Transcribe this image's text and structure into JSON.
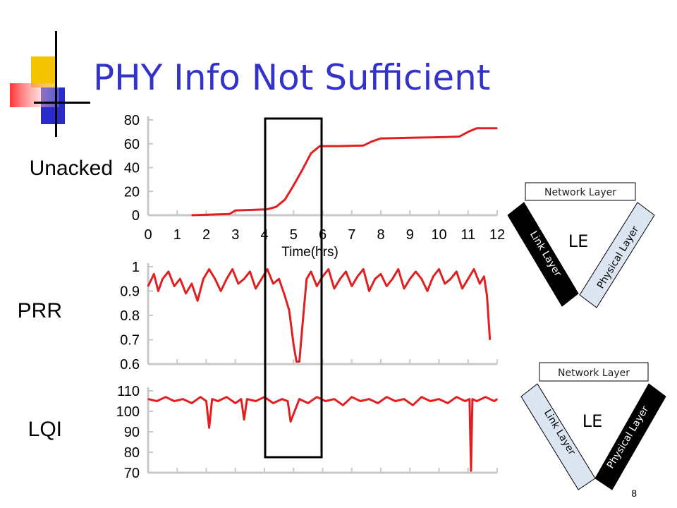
{
  "slide": {
    "title": "PHY Info Not Sufficient",
    "page_number": "8",
    "colors": {
      "title": "#3333cc",
      "line": "#e02020",
      "axis": "#c8c8c8",
      "box": "#000000"
    }
  },
  "chart_data": [
    {
      "type": "line",
      "label": "Unacked",
      "xlabel": "Time(hrs)",
      "xlim": [
        0,
        12
      ],
      "ylim": [
        0,
        80
      ],
      "xticks": [
        "0",
        "1",
        "2",
        "3",
        "4",
        "5",
        "6",
        "7",
        "8",
        "9",
        "10",
        "11",
        "12"
      ],
      "yticks": [
        "80",
        "60",
        "40",
        "20",
        "0"
      ],
      "series": [
        {
          "x": [
            1.5,
            2.8,
            3.0,
            4.1,
            4.4,
            4.7,
            5.0,
            5.3,
            5.6,
            5.9,
            6.0,
            6.5,
            7.4,
            7.7,
            8.0,
            9.0,
            10.0,
            10.7,
            11.0,
            11.3,
            12.0
          ],
          "values": [
            0,
            1,
            4,
            5,
            7,
            13,
            25,
            38,
            52,
            58,
            58,
            58,
            58.5,
            62,
            64.5,
            65,
            65.5,
            66,
            70,
            73,
            73
          ]
        }
      ]
    },
    {
      "type": "line",
      "label": "PRR",
      "xlim": [
        0,
        12
      ],
      "ylim": [
        0.6,
        1
      ],
      "yticks": [
        "1",
        "0.9",
        "0.8",
        "0.7",
        "0.6"
      ],
      "series": [
        {
          "x": [
            0.0,
            0.2,
            0.35,
            0.5,
            0.7,
            0.9,
            1.1,
            1.3,
            1.5,
            1.7,
            1.9,
            2.1,
            2.3,
            2.5,
            2.7,
            2.9,
            3.1,
            3.3,
            3.5,
            3.7,
            3.9,
            4.1,
            4.3,
            4.5,
            4.7,
            4.85,
            5.0,
            5.1,
            5.2,
            5.3,
            5.45,
            5.6,
            5.8,
            6.0,
            6.2,
            6.4,
            6.6,
            6.8,
            7.0,
            7.2,
            7.4,
            7.6,
            7.8,
            8.0,
            8.2,
            8.4,
            8.6,
            8.8,
            9.0,
            9.2,
            9.4,
            9.6,
            9.8,
            10.0,
            10.2,
            10.4,
            10.6,
            10.8,
            11.0,
            11.2,
            11.4,
            11.55,
            11.65,
            11.75
          ],
          "values": [
            0.92,
            0.97,
            0.9,
            0.95,
            0.98,
            0.92,
            0.95,
            0.89,
            0.93,
            0.86,
            0.95,
            0.99,
            0.95,
            0.9,
            0.95,
            0.99,
            0.93,
            0.95,
            0.98,
            0.91,
            0.95,
            0.99,
            0.93,
            0.95,
            0.88,
            0.82,
            0.68,
            0.61,
            0.61,
            0.75,
            0.95,
            0.98,
            0.92,
            0.96,
            0.99,
            0.91,
            0.95,
            0.98,
            0.92,
            0.96,
            0.99,
            0.9,
            0.95,
            0.97,
            0.92,
            0.95,
            0.99,
            0.91,
            0.95,
            0.98,
            0.95,
            0.9,
            0.96,
            0.99,
            0.93,
            0.95,
            0.98,
            0.91,
            0.95,
            0.99,
            0.93,
            0.96,
            0.88,
            0.7
          ]
        }
      ]
    },
    {
      "type": "line",
      "label": "LQI",
      "xlim": [
        0,
        12
      ],
      "ylim": [
        70,
        110
      ],
      "yticks": [
        "110",
        "100",
        "90",
        "80",
        "70"
      ],
      "series": [
        {
          "x": [
            0.0,
            0.3,
            0.6,
            0.9,
            1.2,
            1.5,
            1.8,
            2.0,
            2.1,
            2.2,
            2.4,
            2.7,
            3.0,
            3.2,
            3.3,
            3.4,
            3.7,
            4.0,
            4.3,
            4.6,
            4.8,
            4.9,
            5.2,
            5.5,
            5.8,
            6.1,
            6.4,
            6.7,
            7.0,
            7.3,
            7.6,
            7.9,
            8.2,
            8.5,
            8.8,
            9.1,
            9.4,
            9.7,
            10.0,
            10.3,
            10.6,
            10.9,
            11.05,
            11.1,
            11.15,
            11.3,
            11.6,
            11.9,
            12.0
          ],
          "values": [
            106,
            105,
            107,
            105,
            106,
            104,
            107,
            105,
            92,
            106,
            105,
            107,
            104,
            106,
            96,
            106,
            105,
            107,
            104,
            106,
            105,
            95,
            106,
            104,
            107,
            105,
            106,
            103,
            107,
            105,
            106,
            104,
            107,
            105,
            106,
            103,
            107,
            105,
            106,
            104,
            107,
            105,
            106,
            71,
            106,
            105,
            107,
            105,
            106
          ]
        }
      ]
    }
  ],
  "diagrams": [
    {
      "top_label": "Network Layer",
      "left_label": "Link Layer",
      "right_label": "Physical Layer",
      "center_label": "LE",
      "dark_side": "left"
    },
    {
      "top_label": "Network Layer",
      "left_label": "Link Layer",
      "right_label": "Physical Layer",
      "center_label": "LE",
      "dark_side": "right"
    }
  ]
}
